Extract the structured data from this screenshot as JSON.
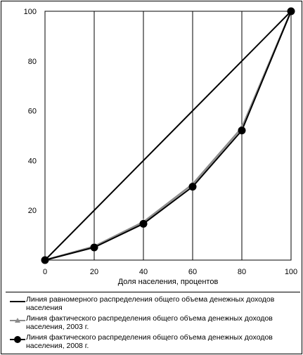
{
  "chart_data": {
    "type": "line",
    "title": "",
    "xlabel": "Доля населения, процентов",
    "ylabel": "",
    "xlim": [
      0,
      100
    ],
    "ylim": [
      0,
      100
    ],
    "x_ticks": [
      "0",
      "20",
      "40",
      "60",
      "80",
      "100"
    ],
    "y_ticks": [
      "20",
      "40",
      "60",
      "80",
      "100"
    ],
    "grid": "vertical",
    "legend_position": "bottom",
    "series": [
      {
        "name": "Линия равномерного распределения общего объема денежных доходов населения",
        "color": "#000000",
        "marker": "none",
        "x": [
          0,
          100
        ],
        "y": [
          0,
          100
        ]
      },
      {
        "name": "Линия фактического распределения общего объема денежных доходов населения, 2003 г.",
        "color": "#8c8c8c",
        "marker": "triangle",
        "x": [
          0,
          20,
          40,
          60,
          80,
          100
        ],
        "y": [
          0,
          5.5,
          15.3,
          30.5,
          53.2,
          100
        ]
      },
      {
        "name": "Линия фактического распределения общего объема денежных доходов населения, 2008 г.",
        "color": "#000000",
        "marker": "circle",
        "x": [
          0,
          20,
          40,
          60,
          80,
          100
        ],
        "y": [
          0,
          5.1,
          14.6,
          29.5,
          52.1,
          100
        ]
      }
    ]
  }
}
